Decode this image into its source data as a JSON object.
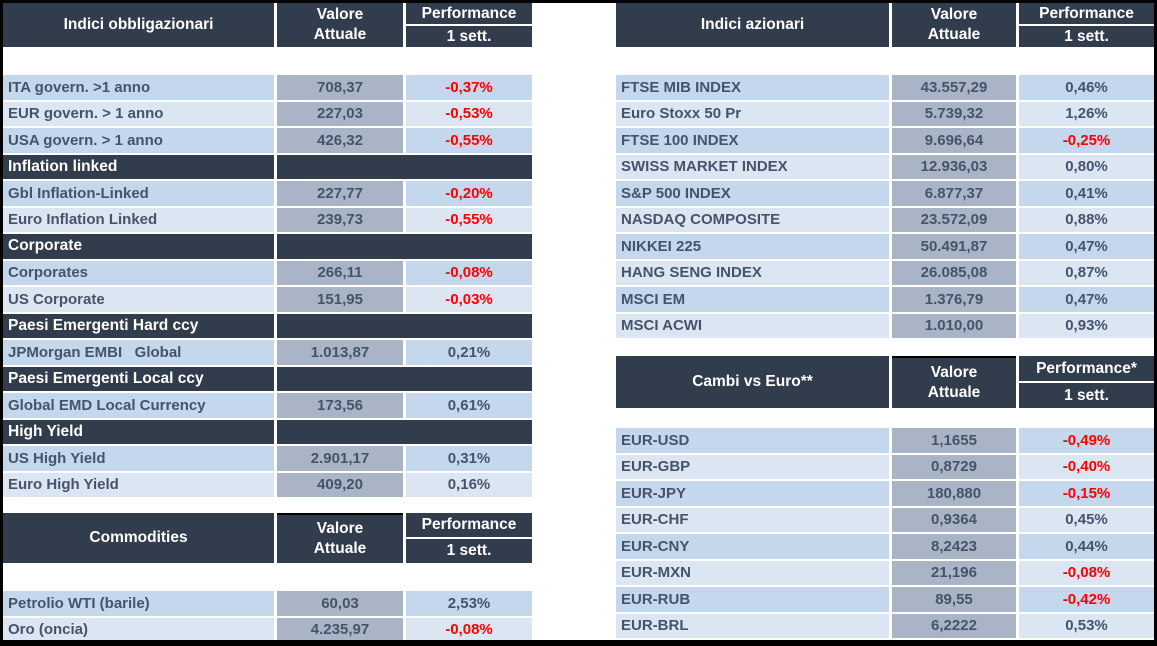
{
  "report": {
    "colors": {
      "frame": "#000000",
      "canvas": "#FFFFFF",
      "header_bg": "#313C4D",
      "section_bg": "#313C4D",
      "row_dark_blue": "#C5D7ED",
      "row_light_blue": "#DCE6F3",
      "value_cell_bg": "#A9B5C6",
      "text": "#44546A",
      "negative_text": "#FF0000",
      "header_text": "#FFFFFF"
    }
  },
  "tables": [
    {
      "key": "bond-indices",
      "title": "Indici obbligazionari",
      "col_value": [
        "Valore",
        "Attuale"
      ],
      "col_perf": [
        "Performance",
        "1 sett."
      ],
      "rows": [
        {
          "type": "data",
          "label": "ITA govern. >1 anno",
          "value": "708,37",
          "perf": "-0,37%",
          "neg": true
        },
        {
          "type": "data",
          "label": "EUR govern. > 1 anno",
          "value": "227,03",
          "perf": "-0,53%",
          "neg": true
        },
        {
          "type": "data",
          "label": "USA govern. > 1 anno",
          "value": "426,32",
          "perf": "-0,55%",
          "neg": true
        },
        {
          "type": "section",
          "label": "Inflation linked"
        },
        {
          "type": "data",
          "label": "Gbl Inflation-Linked",
          "value": "227,77",
          "perf": "-0,20%",
          "neg": true
        },
        {
          "type": "data",
          "label": "Euro Inflation Linked",
          "value": "239,73",
          "perf": "-0,55%",
          "neg": true
        },
        {
          "type": "section",
          "label": "Corporate"
        },
        {
          "type": "data",
          "label": "Corporates",
          "value": "266,11",
          "perf": "-0,08%",
          "neg": true
        },
        {
          "type": "data",
          "label": "US Corporate",
          "value": "151,95",
          "perf": "-0,03%",
          "neg": true
        },
        {
          "type": "section",
          "label": "Paesi Emergenti Hard ccy"
        },
        {
          "type": "data",
          "label": "JPMorgan EMBI   Global",
          "value": "1.013,87",
          "perf": "0,21%",
          "neg": false
        },
        {
          "type": "section",
          "label": "Paesi Emergenti Local ccy"
        },
        {
          "type": "data",
          "label": "Global EMD Local Currency",
          "value": "173,56",
          "perf": "0,61%",
          "neg": false
        },
        {
          "type": "section",
          "label": "High Yield"
        },
        {
          "type": "data",
          "label": "US High Yield",
          "value": "2.901,17",
          "perf": "0,31%",
          "neg": false
        },
        {
          "type": "data",
          "label": "Euro High Yield",
          "value": "409,20",
          "perf": "0,16%",
          "neg": false
        }
      ]
    },
    {
      "key": "commodities",
      "title": "Commodities",
      "col_value": [
        "Valore",
        "Attuale"
      ],
      "col_perf": [
        "Performance",
        "1 sett."
      ],
      "rows": [
        {
          "type": "data",
          "label": "Petrolio WTI (barile)",
          "value": "60,03",
          "perf": "2,53%",
          "neg": false
        },
        {
          "type": "data",
          "label": "Oro (oncia)",
          "value": "4.235,97",
          "perf": "-0,08%",
          "neg": true
        }
      ]
    },
    {
      "key": "equity-indices",
      "title": "Indici azionari",
      "col_value": [
        "Valore",
        "Attuale"
      ],
      "col_perf": [
        "Performance",
        "1 sett."
      ],
      "rows": [
        {
          "type": "data",
          "label": "FTSE MIB INDEX",
          "value": "43.557,29",
          "perf": "0,46%",
          "neg": false
        },
        {
          "type": "data",
          "label": "Euro Stoxx 50 Pr",
          "value": "5.739,32",
          "perf": "1,26%",
          "neg": false
        },
        {
          "type": "data",
          "label": "FTSE 100 INDEX",
          "value": "9.696,64",
          "perf": "-0,25%",
          "neg": true
        },
        {
          "type": "data",
          "label": "SWISS MARKET INDEX",
          "value": "12.936,03",
          "perf": "0,80%",
          "neg": false
        },
        {
          "type": "data",
          "label": "S&P 500 INDEX",
          "value": "6.877,37",
          "perf": "0,41%",
          "neg": false
        },
        {
          "type": "data",
          "label": "NASDAQ COMPOSITE",
          "value": "23.572,09",
          "perf": "0,88%",
          "neg": false
        },
        {
          "type": "data",
          "label": "NIKKEI 225",
          "value": "50.491,87",
          "perf": "0,47%",
          "neg": false
        },
        {
          "type": "data",
          "label": "HANG SENG INDEX",
          "value": "26.085,08",
          "perf": "0,87%",
          "neg": false
        },
        {
          "type": "data",
          "label": "MSCI EM",
          "value": "1.376,79",
          "perf": "0,47%",
          "neg": false
        },
        {
          "type": "data",
          "label": "MSCI ACWI",
          "value": "1.010,00",
          "perf": "0,93%",
          "neg": false
        }
      ]
    },
    {
      "key": "fx-vs-euro",
      "title": "Cambi vs Euro**",
      "col_value": [
        "Valore",
        "Attuale"
      ],
      "col_perf": [
        "Performance*",
        "1 sett."
      ],
      "rows": [
        {
          "type": "data",
          "label": "EUR-USD",
          "value": "1,1655",
          "perf": "-0,49%",
          "neg": true
        },
        {
          "type": "data",
          "label": "EUR-GBP",
          "value": "0,8729",
          "perf": "-0,40%",
          "neg": true
        },
        {
          "type": "data",
          "label": "EUR-JPY",
          "value": "180,880",
          "perf": "-0,15%",
          "neg": true
        },
        {
          "type": "data",
          "label": "EUR-CHF",
          "value": "0,9364",
          "perf": "0,45%",
          "neg": false
        },
        {
          "type": "data",
          "label": "EUR-CNY",
          "value": "8,2423",
          "perf": "0,44%",
          "neg": false
        },
        {
          "type": "data",
          "label": "EUR-MXN",
          "value": "21,196",
          "perf": "-0,08%",
          "neg": true
        },
        {
          "type": "data",
          "label": "EUR-RUB",
          "value": "89,55",
          "perf": "-0,42%",
          "neg": true
        },
        {
          "type": "data",
          "label": "EUR-BRL",
          "value": "6,2222",
          "perf": "0,53%",
          "neg": false
        }
      ]
    }
  ]
}
